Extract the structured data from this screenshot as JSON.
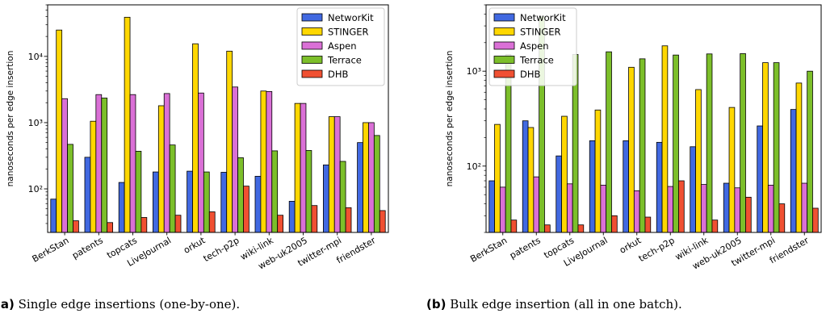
{
  "chart_data": [
    {
      "type": "bar",
      "title": "",
      "xlabel": "",
      "ylabel": "nanoseconds per edge insertion",
      "yscale": "log",
      "ylim": [
        22,
        60000
      ],
      "ytick_values": [
        100,
        1000,
        10000
      ],
      "categories": [
        "BerkStan",
        "patents",
        "topcats",
        "LiveJournal",
        "orkut",
        "tech-p2p",
        "wiki-link",
        "web-uk2005",
        "twitter-mpi",
        "friendster"
      ],
      "legend_position": "top-right",
      "grid": false,
      "series": [
        {
          "name": "NetworKit",
          "color": "#4169e1",
          "values": [
            70,
            300,
            125,
            180,
            185,
            178,
            155,
            65,
            230,
            500
          ]
        },
        {
          "name": "STINGER",
          "color": "#ffd700",
          "values": [
            25000,
            1050,
            39000,
            1800,
            15500,
            12000,
            3000,
            1950,
            1230,
            1000
          ]
        },
        {
          "name": "Aspen",
          "color": "#da70d6",
          "values": [
            2300,
            2650,
            2650,
            2750,
            2800,
            3450,
            2950,
            1950,
            1230,
            1000
          ]
        },
        {
          "name": "Terrace",
          "color": "#7cbf2a",
          "values": [
            470,
            2350,
            370,
            460,
            180,
            295,
            375,
            380,
            260,
            640
          ]
        },
        {
          "name": "DHB",
          "color": "#f05032",
          "values": [
            33,
            31,
            37,
            40,
            45,
            110,
            40,
            56,
            52,
            47
          ]
        }
      ],
      "caption_label": "(a)",
      "caption_text": "Single edge insertions (one-by-one)."
    },
    {
      "type": "bar",
      "title": "",
      "xlabel": "",
      "ylabel": "nanoseconds per edge insertion",
      "yscale": "log",
      "ylim": [
        20,
        5000
      ],
      "ytick_values": [
        100,
        1000
      ],
      "categories": [
        "BerkStan",
        "patents",
        "topcats",
        "LiveJournal",
        "orkut",
        "tech-p2p",
        "wiki-link",
        "web-uk2005",
        "twitter-mpi",
        "friendster"
      ],
      "legend_position": "top-left",
      "grid": false,
      "series": [
        {
          "name": "NetworKit",
          "color": "#4169e1",
          "values": [
            70,
            300,
            128,
            185,
            185,
            178,
            160,
            66,
            265,
            395
          ]
        },
        {
          "name": "STINGER",
          "color": "#ffd700",
          "values": [
            275,
            255,
            335,
            390,
            1100,
            1850,
            640,
            415,
            1230,
            750
          ]
        },
        {
          "name": "Aspen",
          "color": "#da70d6",
          "values": [
            60,
            77,
            65,
            63,
            55,
            61,
            64,
            59,
            63,
            66
          ]
        },
        {
          "name": "Terrace",
          "color": "#7cbf2a",
          "values": [
            1500,
            3800,
            1500,
            1600,
            1350,
            1480,
            1520,
            1530,
            1230,
            1000
          ]
        },
        {
          "name": "DHB",
          "color": "#f05032",
          "values": [
            27,
            24,
            24,
            30,
            29,
            70,
            27,
            47,
            40,
            36
          ]
        }
      ],
      "caption_label": "(b)",
      "caption_text": "Bulk edge insertion (all in one batch)."
    }
  ]
}
